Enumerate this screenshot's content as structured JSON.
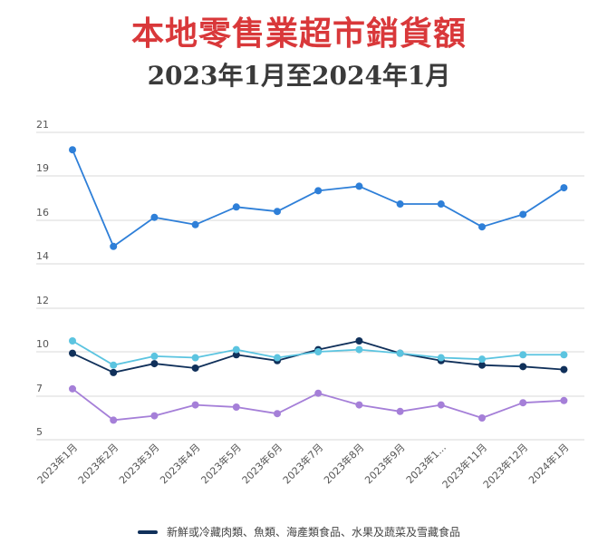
{
  "title": "本地零售業超市銷貨額",
  "subtitle": "2023年1月至2024年1月",
  "colors": {
    "title": "#d9383a",
    "grid": "#d9d9d9",
    "axis_text": "#555555"
  },
  "legend": {
    "label": "新鮮或冷藏肉類、魚類、海產類食品、水果及蔬菜及雪藏食品",
    "color": "#10305a"
  },
  "chart_data": {
    "type": "line",
    "categories": [
      "2023年1月",
      "2023年2月",
      "2023年3月",
      "2023年4月",
      "2023年5月",
      "2023年6月",
      "2023年7月",
      "2023年8月",
      "2023年9月",
      "2023年1...",
      "2023年11月",
      "2023年12月",
      "2024年1月"
    ],
    "y_ticks": [
      21,
      19,
      16,
      14,
      12,
      10,
      7,
      5
    ],
    "ylim": [
      5,
      21
    ],
    "grid": true,
    "legend_position": "bottom",
    "series": [
      {
        "name": "",
        "color": "#2e7fd8",
        "values": [
          20.2,
          14.8,
          16.2,
          15.8,
          16.9,
          16.6,
          18.0,
          18.3,
          17.1,
          17.1,
          15.7,
          16.4,
          18.2
        ]
      },
      {
        "name": "新鮮或冷藏肉類、魚類、海產類食品、水果及蔬菜及雪藏食品",
        "color": "#10305a",
        "values": [
          9.9,
          8.6,
          9.2,
          8.9,
          9.8,
          9.4,
          10.1,
          10.5,
          9.9,
          9.4,
          9.1,
          9.0,
          8.8
        ]
      },
      {
        "name": "",
        "color": "#5bc4e0",
        "values": [
          10.5,
          9.1,
          9.7,
          9.6,
          10.1,
          9.6,
          10.0,
          10.1,
          9.9,
          9.6,
          9.5,
          9.8,
          9.8
        ]
      },
      {
        "name": "",
        "color": "#a57fd8",
        "values": [
          7.5,
          5.9,
          6.1,
          6.6,
          6.5,
          6.2,
          7.2,
          6.6,
          6.3,
          6.6,
          6.0,
          6.7,
          6.8
        ]
      }
    ]
  }
}
